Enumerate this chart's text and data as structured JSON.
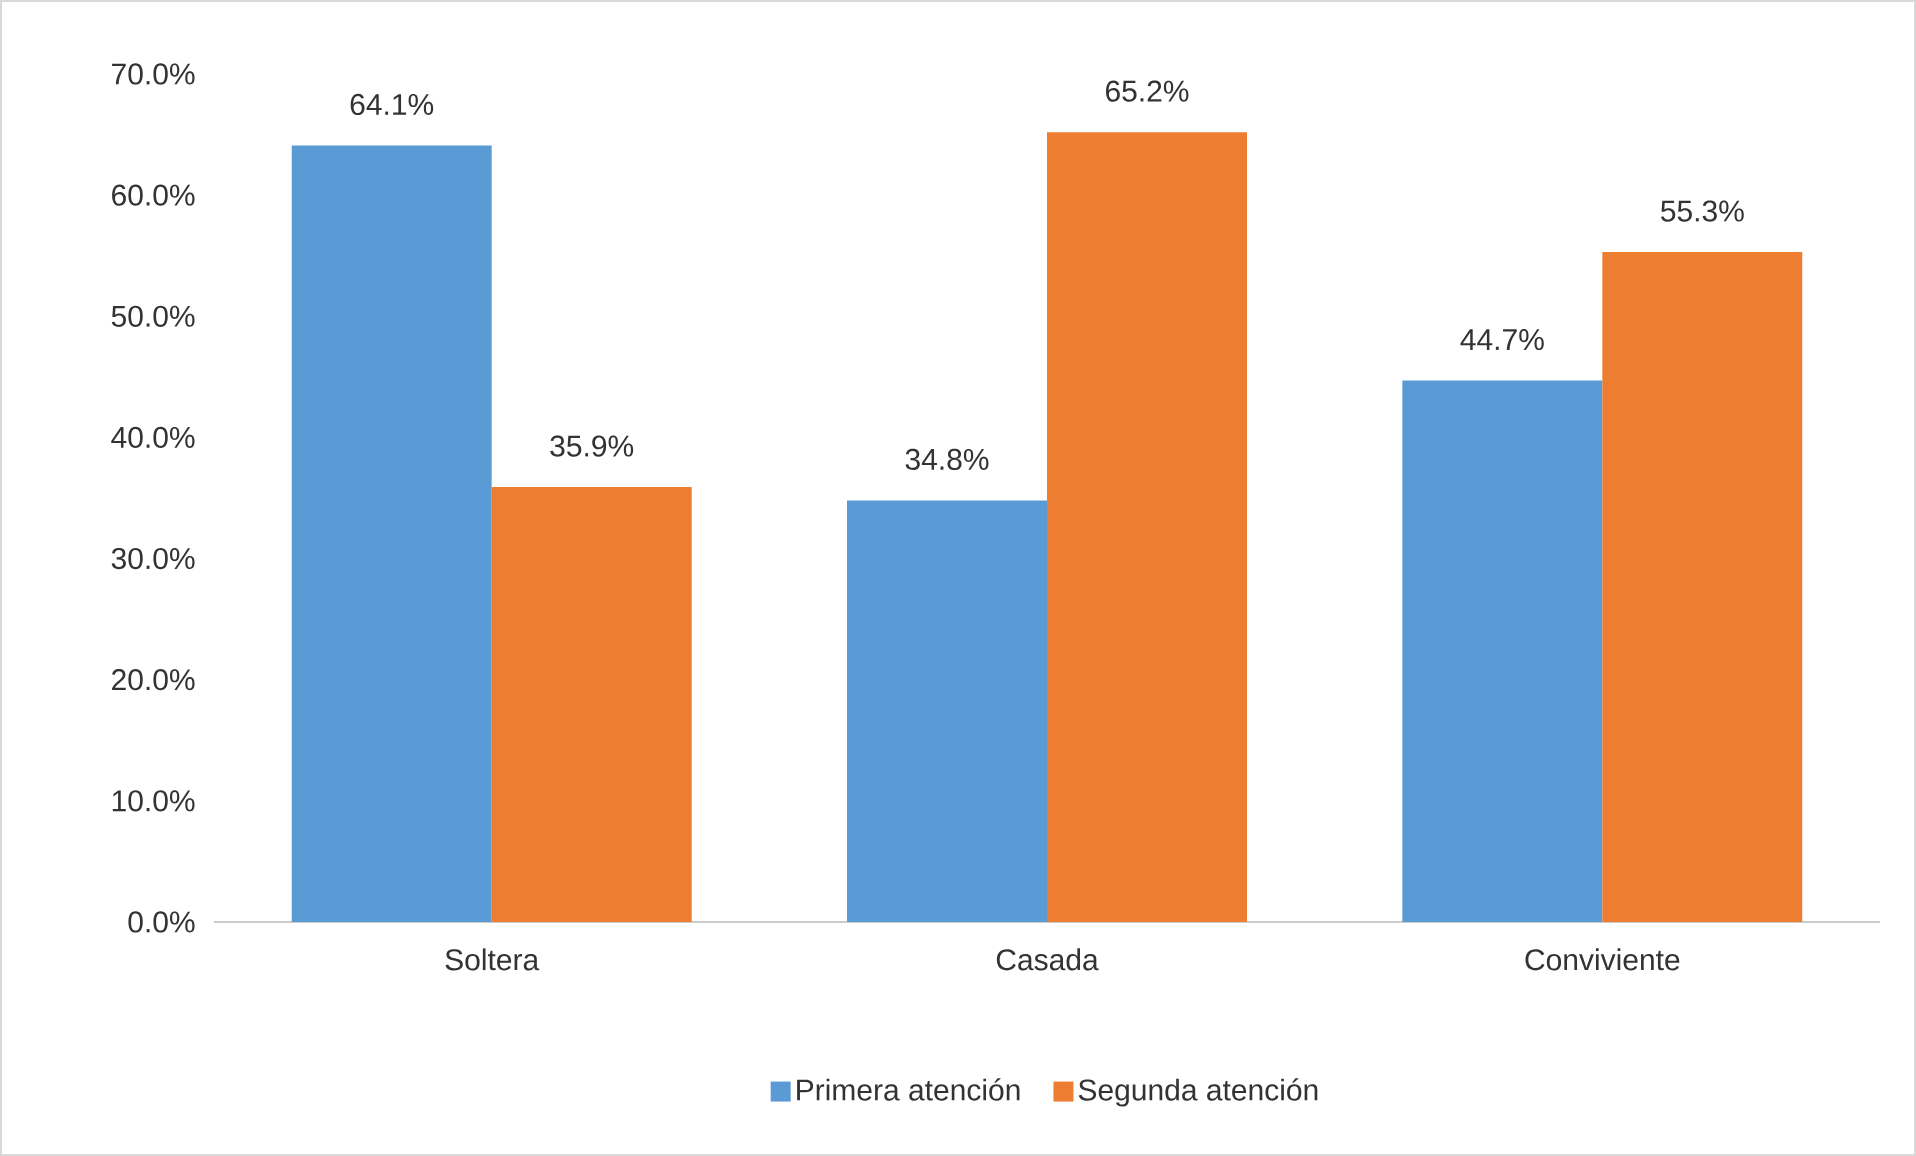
{
  "chart_data": {
    "type": "bar",
    "categories": [
      "Soltera",
      "Casada",
      "Conviviente"
    ],
    "series": [
      {
        "name": "Primera atención",
        "color": "#5b9bd5",
        "values": [
          64.1,
          34.8,
          44.7
        ],
        "value_labels": [
          "64.1%",
          "34.8%",
          "44.7%"
        ]
      },
      {
        "name": "Segunda atención",
        "color": "#ed7d31",
        "values": [
          35.9,
          65.2,
          55.3
        ],
        "value_labels": [
          "35.9%",
          "65.2%",
          "55.3%"
        ]
      }
    ],
    "ylim": [
      0,
      70
    ],
    "yticks": [
      {
        "value": 0,
        "label": "0.0%"
      },
      {
        "value": 10,
        "label": "10.0%"
      },
      {
        "value": 20,
        "label": "20.0%"
      },
      {
        "value": 30,
        "label": "30.0%"
      },
      {
        "value": 40,
        "label": "40.0%"
      },
      {
        "value": 50,
        "label": "50.0%"
      },
      {
        "value": 60,
        "label": "60.0%"
      },
      {
        "value": 70,
        "label": "70.0%"
      }
    ],
    "grid": false,
    "legend": "bottom"
  }
}
